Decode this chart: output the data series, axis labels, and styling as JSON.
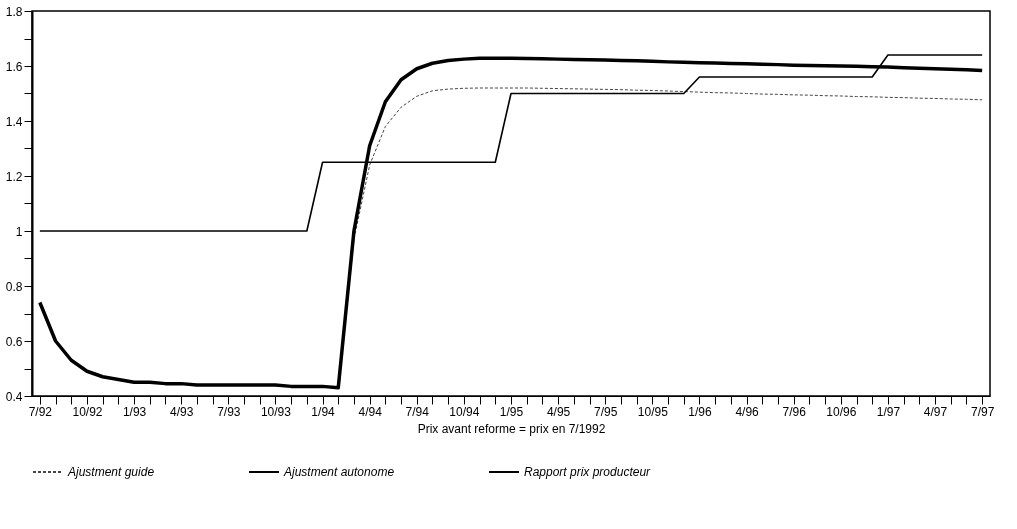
{
  "chart_data": {
    "type": "line",
    "xlabel": "Prix avant reforme = prix en 7/1992",
    "categories": [
      "7/92",
      null,
      null,
      "10/92",
      null,
      null,
      "1/93",
      null,
      null,
      "4/93",
      null,
      null,
      "7/93",
      null,
      null,
      "10/93",
      null,
      null,
      "1/94",
      null,
      null,
      "4/94",
      null,
      null,
      "7/94",
      null,
      null,
      "10/94",
      null,
      null,
      "1/95",
      null,
      null,
      "4/95",
      null,
      null,
      "7/95",
      null,
      null,
      "10/95",
      null,
      null,
      "1/96",
      null,
      null,
      "4/96",
      null,
      null,
      "7/96",
      null,
      null,
      "10/96",
      null,
      null,
      "1/97",
      null,
      null,
      "4/97",
      null,
      null,
      "7/97"
    ],
    "series": [
      {
        "name": "Ajustment guide",
        "color": "#444444",
        "line_style": "dashed",
        "values": [
          null,
          null,
          null,
          null,
          null,
          null,
          null,
          null,
          null,
          null,
          null,
          null,
          null,
          null,
          null,
          null,
          null,
          null,
          null,
          0.43,
          0.97,
          1.24,
          1.38,
          1.45,
          1.49,
          1.51,
          1.516,
          1.519,
          1.52,
          1.52,
          1.52,
          1.52,
          1.519,
          1.518,
          1.517,
          1.516,
          1.515,
          1.514,
          1.512,
          1.511,
          1.509,
          1.507,
          1.505,
          1.503,
          1.502,
          1.5,
          1.498,
          1.497,
          1.495,
          1.494,
          1.492,
          1.491,
          1.489,
          1.488,
          1.486,
          1.485,
          1.483,
          1.482,
          1.48,
          1.479,
          1.477
        ]
      },
      {
        "name": "Ajustment autonome",
        "color": "#000000",
        "line_style": "solid",
        "values": [
          0.74,
          0.6,
          0.53,
          0.49,
          0.47,
          0.46,
          0.45,
          0.45,
          0.445,
          0.445,
          0.44,
          0.44,
          0.44,
          0.44,
          0.44,
          0.44,
          0.435,
          0.435,
          0.435,
          0.43,
          1.0,
          1.31,
          1.47,
          1.55,
          1.59,
          1.61,
          1.62,
          1.625,
          1.628,
          1.628,
          1.628,
          1.627,
          1.626,
          1.625,
          1.624,
          1.623,
          1.622,
          1.62,
          1.619,
          1.617,
          1.615,
          1.614,
          1.612,
          1.611,
          1.609,
          1.608,
          1.606,
          1.605,
          1.603,
          1.602,
          1.601,
          1.6,
          1.599,
          1.597,
          1.596,
          1.594,
          1.592,
          1.59,
          1.588,
          1.586,
          1.584
        ]
      },
      {
        "name": "Rapport prix producteur",
        "color": "#000000",
        "line_style": "solid",
        "values": [
          1,
          1,
          1,
          1,
          1,
          1,
          1,
          1,
          1,
          1,
          1,
          1,
          1,
          1,
          1,
          1,
          1,
          1,
          1.25,
          1.25,
          1.25,
          1.25,
          1.25,
          1.25,
          1.25,
          1.25,
          1.25,
          1.25,
          1.25,
          1.25,
          1.5,
          1.5,
          1.5,
          1.5,
          1.5,
          1.5,
          1.5,
          1.5,
          1.5,
          1.5,
          1.5,
          1.5,
          1.56,
          1.56,
          1.56,
          1.56,
          1.56,
          1.56,
          1.56,
          1.56,
          1.56,
          1.56,
          1.56,
          1.56,
          1.64,
          1.64,
          1.64,
          1.64,
          1.64,
          1.64,
          1.64
        ]
      }
    ],
    "ylim": [
      0.4,
      1.8
    ],
    "yticks": [
      0.4,
      {
        "value": 0.5,
        "label": null
      },
      0.6,
      {
        "value": 0.7,
        "label": null
      },
      0.8,
      {
        "value": 0.9,
        "label": null
      },
      1,
      {
        "value": 1.1,
        "label": null
      },
      1.2,
      {
        "value": 1.3,
        "label": null
      },
      1.4,
      {
        "value": 1.5,
        "label": null
      },
      1.6,
      {
        "value": 1.7,
        "label": null
      },
      1.8
    ],
    "grid": false,
    "legend": "bottom"
  }
}
